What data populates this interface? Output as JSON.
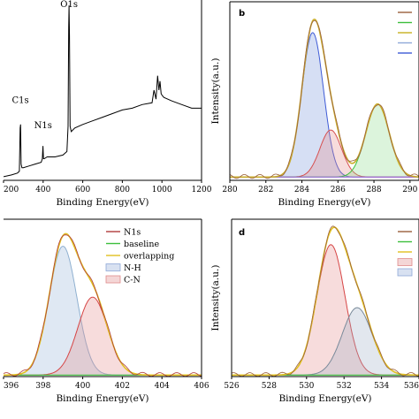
{
  "chart_data": [
    {
      "id": "a",
      "type": "line",
      "panel_letter": "",
      "xlabel": "Binding Energy(eV)",
      "ylabel": "",
      "xlim": [
        200,
        1200
      ],
      "ylim": [
        0,
        1
      ],
      "x_ticks": [
        200,
        400,
        600,
        800,
        1000,
        1200
      ],
      "x_tick_labels": [
        "200",
        "400",
        "600",
        "800",
        "1000",
        "1200"
      ],
      "annotations": [
        {
          "text": "C1s",
          "x": 285,
          "y": 0.43
        },
        {
          "text": "N1s",
          "x": 400,
          "y": 0.29
        },
        {
          "text": "O1s",
          "x": 531,
          "y": 0.96
        }
      ],
      "series": [
        {
          "color": "#000000",
          "x": [
            200,
            240,
            270,
            280,
            284,
            286,
            289,
            293,
            300,
            330,
            360,
            390,
            396,
            399,
            402,
            406,
            420,
            460,
            500,
            520,
            526,
            529,
            531,
            533,
            536,
            542,
            560,
            600,
            650,
            700,
            750,
            800,
            850,
            900,
            950,
            960,
            970,
            978,
            985,
            990,
            996,
            1002,
            1010,
            1050,
            1100,
            1150,
            1200
          ],
          "y": [
            0.02,
            0.03,
            0.04,
            0.05,
            0.29,
            0.31,
            0.09,
            0.07,
            0.07,
            0.08,
            0.09,
            0.1,
            0.12,
            0.19,
            0.12,
            0.12,
            0.13,
            0.13,
            0.14,
            0.16,
            0.3,
            0.85,
            0.97,
            0.8,
            0.3,
            0.27,
            0.29,
            0.31,
            0.33,
            0.35,
            0.37,
            0.39,
            0.4,
            0.42,
            0.43,
            0.5,
            0.45,
            0.58,
            0.5,
            0.55,
            0.48,
            0.47,
            0.46,
            0.44,
            0.42,
            0.4,
            0.4
          ]
        }
      ]
    },
    {
      "id": "b",
      "type": "line",
      "panel_letter": "b",
      "xlabel": "Binding Energy(eV)",
      "ylabel": "Intensity(a.u.)",
      "xlim": [
        280,
        290.5
      ],
      "ylim": [
        0,
        1.1
      ],
      "x_ticks": [
        280,
        282,
        284,
        286,
        288,
        290
      ],
      "x_tick_labels": [
        "280",
        "282",
        "284",
        "286",
        "288",
        "290"
      ],
      "legend_position": "top-right",
      "legend_entries": [
        {
          "label": "",
          "color": "#9a5f3c"
        },
        {
          "label": "",
          "color": "#3dbf3d"
        },
        {
          "label": "",
          "color": "#c8b020"
        },
        {
          "label": "",
          "color": "#8fa8d8"
        },
        {
          "label": "",
          "color": "#3e5bd6"
        }
      ],
      "peaks": [
        {
          "center": 284.6,
          "amplitude": 0.89,
          "sigma": 0.6,
          "line": "#3e5bd6",
          "fill": "rgba(120,150,220,0.30)"
        },
        {
          "center": 285.6,
          "amplitude": 0.29,
          "sigma": 0.6,
          "line": "#d65050",
          "fill": "rgba(230,140,140,0.30)"
        },
        {
          "center": 288.2,
          "amplitude": 0.45,
          "sigma": 0.65,
          "line": "#3dbf3d",
          "fill": "rgba(140,220,140,0.30)"
        }
      ],
      "envelope_color": "#c9ad2b",
      "measured_color": "#9a5f3c",
      "baseline": 0.02,
      "baseline_color": "#9a6bd8"
    },
    {
      "id": "c",
      "type": "line",
      "panel_letter": "",
      "xlabel": "Binding Energy(eV)",
      "ylabel": "",
      "xlim": [
        396,
        406
      ],
      "ylim": [
        0,
        1.05
      ],
      "x_ticks": [
        396,
        398,
        400,
        402,
        404,
        406
      ],
      "x_tick_labels": [
        "396",
        "398",
        "400",
        "402",
        "404",
        "406"
      ],
      "legend_position": "top-right",
      "legend_entries": [
        {
          "label": "N1s",
          "color": "#b03c3c",
          "kind": "line"
        },
        {
          "label": "baseline",
          "color": "#3dbf3d",
          "kind": "line"
        },
        {
          "label": "overlapping",
          "color": "#e0c020",
          "kind": "line"
        },
        {
          "label": "N-H",
          "color": "#8fa8d8",
          "kind": "box"
        },
        {
          "label": "C-N",
          "color": "#e08a8a",
          "kind": "box"
        }
      ],
      "peaks": [
        {
          "center": 399.0,
          "amplitude": 0.86,
          "sigma": 0.7,
          "line": "#8fb0d0",
          "fill": "rgba(150,180,215,0.30)"
        },
        {
          "center": 400.5,
          "amplitude": 0.52,
          "sigma": 0.75,
          "line": "#d64545",
          "fill": "rgba(230,140,140,0.30)"
        }
      ],
      "envelope_color": "#e0c020",
      "measured_color": "#b03c3c",
      "baseline": 0.01,
      "baseline_color": "#3dbf3d"
    },
    {
      "id": "d",
      "type": "line",
      "panel_letter": "d",
      "xlabel": "Binding Energy(eV)",
      "ylabel": "Intensity(a.u.)",
      "xlim": [
        526,
        536
      ],
      "ylim": [
        0,
        1.05
      ],
      "x_ticks": [
        526,
        528,
        530,
        532,
        534,
        536
      ],
      "x_tick_labels": [
        "526",
        "528",
        "530",
        "532",
        "534",
        "536"
      ],
      "legend_position": "top-right",
      "legend_entries": [
        {
          "label": "",
          "color": "#9a5f3c",
          "kind": "line"
        },
        {
          "label": "",
          "color": "#3dbf3d",
          "kind": "line"
        },
        {
          "label": "",
          "color": "#e0c020",
          "kind": "line"
        },
        {
          "label": "",
          "color": "#e08a8a",
          "kind": "box"
        },
        {
          "label": "",
          "color": "#8fa8d8",
          "kind": "box"
        }
      ],
      "peaks": [
        {
          "center": 531.3,
          "amplitude": 0.87,
          "sigma": 0.75,
          "line": "#d64545",
          "fill": "rgba(230,140,140,0.30)"
        },
        {
          "center": 532.7,
          "amplitude": 0.45,
          "sigma": 0.8,
          "line": "#7a8a9a",
          "fill": "rgba(160,175,200,0.30)"
        }
      ],
      "envelope_color": "#e0c020",
      "measured_color": "#9a5f3c",
      "baseline": 0.01,
      "baseline_color": "#3dbf3d"
    }
  ]
}
